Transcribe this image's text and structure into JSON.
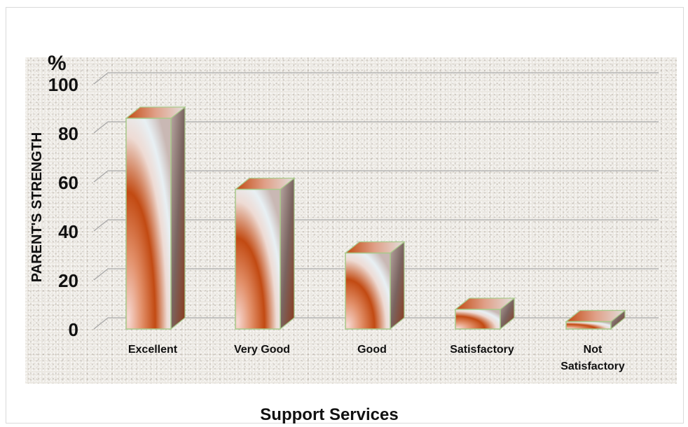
{
  "chart_data": {
    "type": "bar",
    "style": "3d-column",
    "title": "",
    "unit_label": "%",
    "ylabel": "PARENT'S STRENGTH",
    "xlabel": "Support Services",
    "categories": [
      "Excellent",
      "Very Good",
      "Good",
      "Satisfactory",
      "Not Satisfactory"
    ],
    "category_lines": [
      [
        "Excellent"
      ],
      [
        "Very Good"
      ],
      [
        "Good"
      ],
      [
        "Satisfactory"
      ],
      [
        "Not",
        "Satisfactory"
      ]
    ],
    "values": [
      86,
      57,
      31,
      8,
      3
    ],
    "ylim": [
      0,
      100
    ],
    "yticks": [
      0,
      20,
      40,
      60,
      80,
      100
    ],
    "grid": true,
    "legend": "none",
    "colors": {
      "bar_dark": "#c24a12",
      "bar_light": "#f6d8d2",
      "bar_mid": "#e8f0f4",
      "bar_outline": "#a8c98a",
      "side_dark": "#7a6460",
      "side_light": "#d8d2d0",
      "grid": "#a7a7a7",
      "plot_background": "#ebe8e2"
    }
  }
}
